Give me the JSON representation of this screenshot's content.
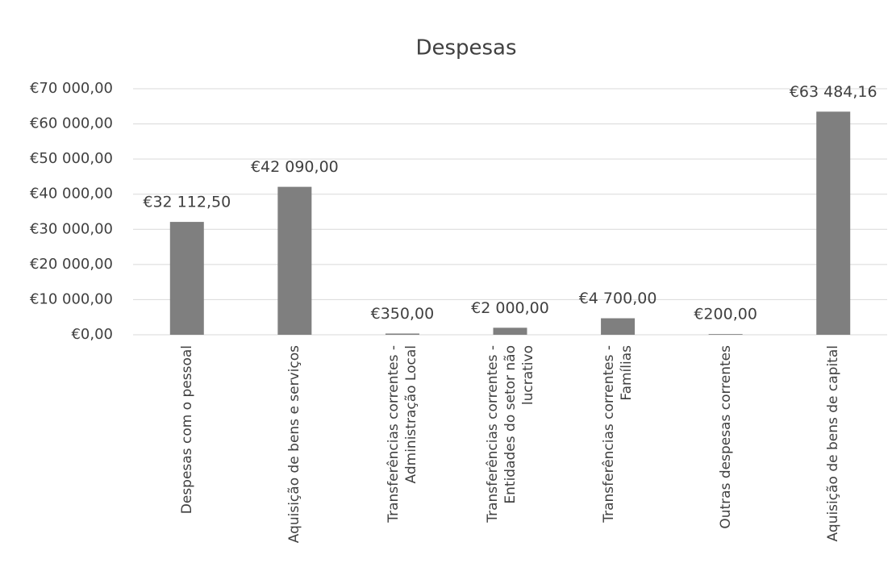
{
  "chart_data": {
    "type": "bar",
    "title": "Despesas",
    "categories": [
      "Despesas com o pessoal",
      "Aquisição de bens e serviços",
      "Transferências correntes -\nAdministração Local",
      "Transferências correntes -\nEntidades do setor não\nlucrativo",
      "Transferências correntes -\nFamílias",
      "Outras despesas correntes",
      "Aquisição de bens de capital"
    ],
    "values": [
      32112.5,
      42090,
      350,
      2000,
      4700,
      200,
      63484.16
    ],
    "value_labels": [
      "€32 112,50",
      "€42 090,00",
      "€350,00",
      "€2 000,00",
      "€4 700,00",
      "€200,00",
      "€63 484,16"
    ],
    "color": "#7f7f7f",
    "ylim": [
      0,
      70000
    ],
    "yticks": [
      {
        "value": 0,
        "label": "€0,00"
      },
      {
        "value": 10000,
        "label": "€10 000,00"
      },
      {
        "value": 20000,
        "label": "€20 000,00"
      },
      {
        "value": 30000,
        "label": "€30 000,00"
      },
      {
        "value": 40000,
        "label": "€40 000,00"
      },
      {
        "value": 50000,
        "label": "€50 000,00"
      },
      {
        "value": 60000,
        "label": "€60 000,00"
      },
      {
        "value": 70000,
        "label": "€70 000,00"
      }
    ],
    "grid": true
  }
}
